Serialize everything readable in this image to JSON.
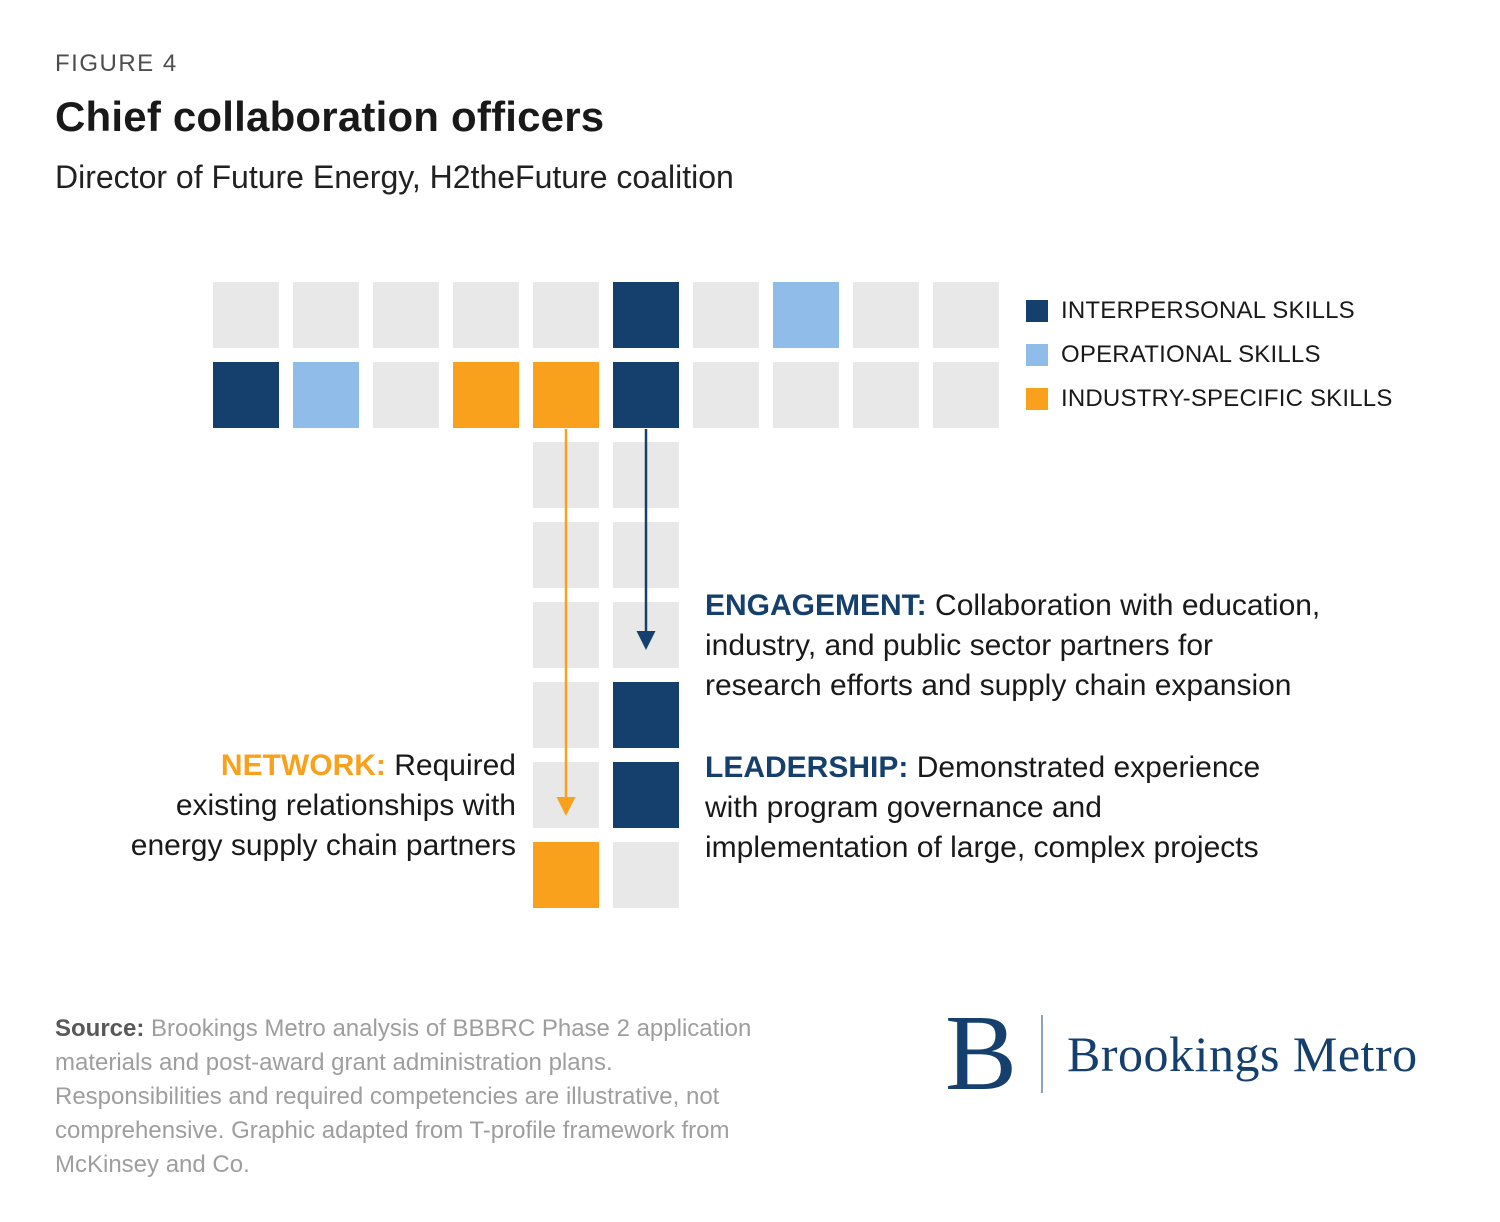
{
  "figure": {
    "eyebrow": "FIGURE 4",
    "title": "Chief collaboration officers",
    "subtitle": "Director of Future Energy, H2theFuture coalition"
  },
  "colors": {
    "navy": "#15406d",
    "light_blue": "#8fbce8",
    "orange": "#f9a11c",
    "gray": "#e8e8e8"
  },
  "legend": [
    {
      "label": "INTERPERSONAL SKILLS",
      "color": "navy"
    },
    {
      "label": "OPERATIONAL SKILLS",
      "color": "light_blue"
    },
    {
      "label": "INDUSTRY-SPECIFIC SKILLS",
      "color": "orange"
    }
  ],
  "grid": {
    "top_rows": [
      [
        "gray",
        "gray",
        "gray",
        "gray",
        "gray",
        "navy",
        "gray",
        "light_blue",
        "gray",
        "gray"
      ],
      [
        "navy",
        "light_blue",
        "gray",
        "orange",
        "orange",
        "navy",
        "gray",
        "gray",
        "gray",
        "gray"
      ]
    ],
    "stem_rows": [
      [
        "gray",
        "gray"
      ],
      [
        "gray",
        "gray"
      ],
      [
        "gray",
        "gray"
      ],
      [
        "gray",
        "navy"
      ],
      [
        "gray",
        "navy"
      ],
      [
        "orange",
        "gray"
      ]
    ]
  },
  "annotations": {
    "engagement": {
      "label": "ENGAGEMENT:",
      "text": "Collaboration with education,\nindustry, and public sector partners for\nresearch efforts and supply chain expansion"
    },
    "leadership": {
      "label": "LEADERSHIP:",
      "text": "Demonstrated experience\nwith program governance and\nimplementation of large, complex projects"
    },
    "network": {
      "label": "NETWORK:",
      "text": "Required\nexisting relationships with\nenergy supply chain partners"
    }
  },
  "source": {
    "label": "Source:",
    "text": "Brookings Metro analysis of BBBRC Phase 2 application\nmaterials and post-award grant administration plans.\nResponsibilities and required competencies are illustrative, not\ncomprehensive. Graphic adapted from T-profile framework from\nMcKinsey and Co."
  },
  "logo": {
    "mark": "B",
    "name": "Brookings Metro"
  }
}
